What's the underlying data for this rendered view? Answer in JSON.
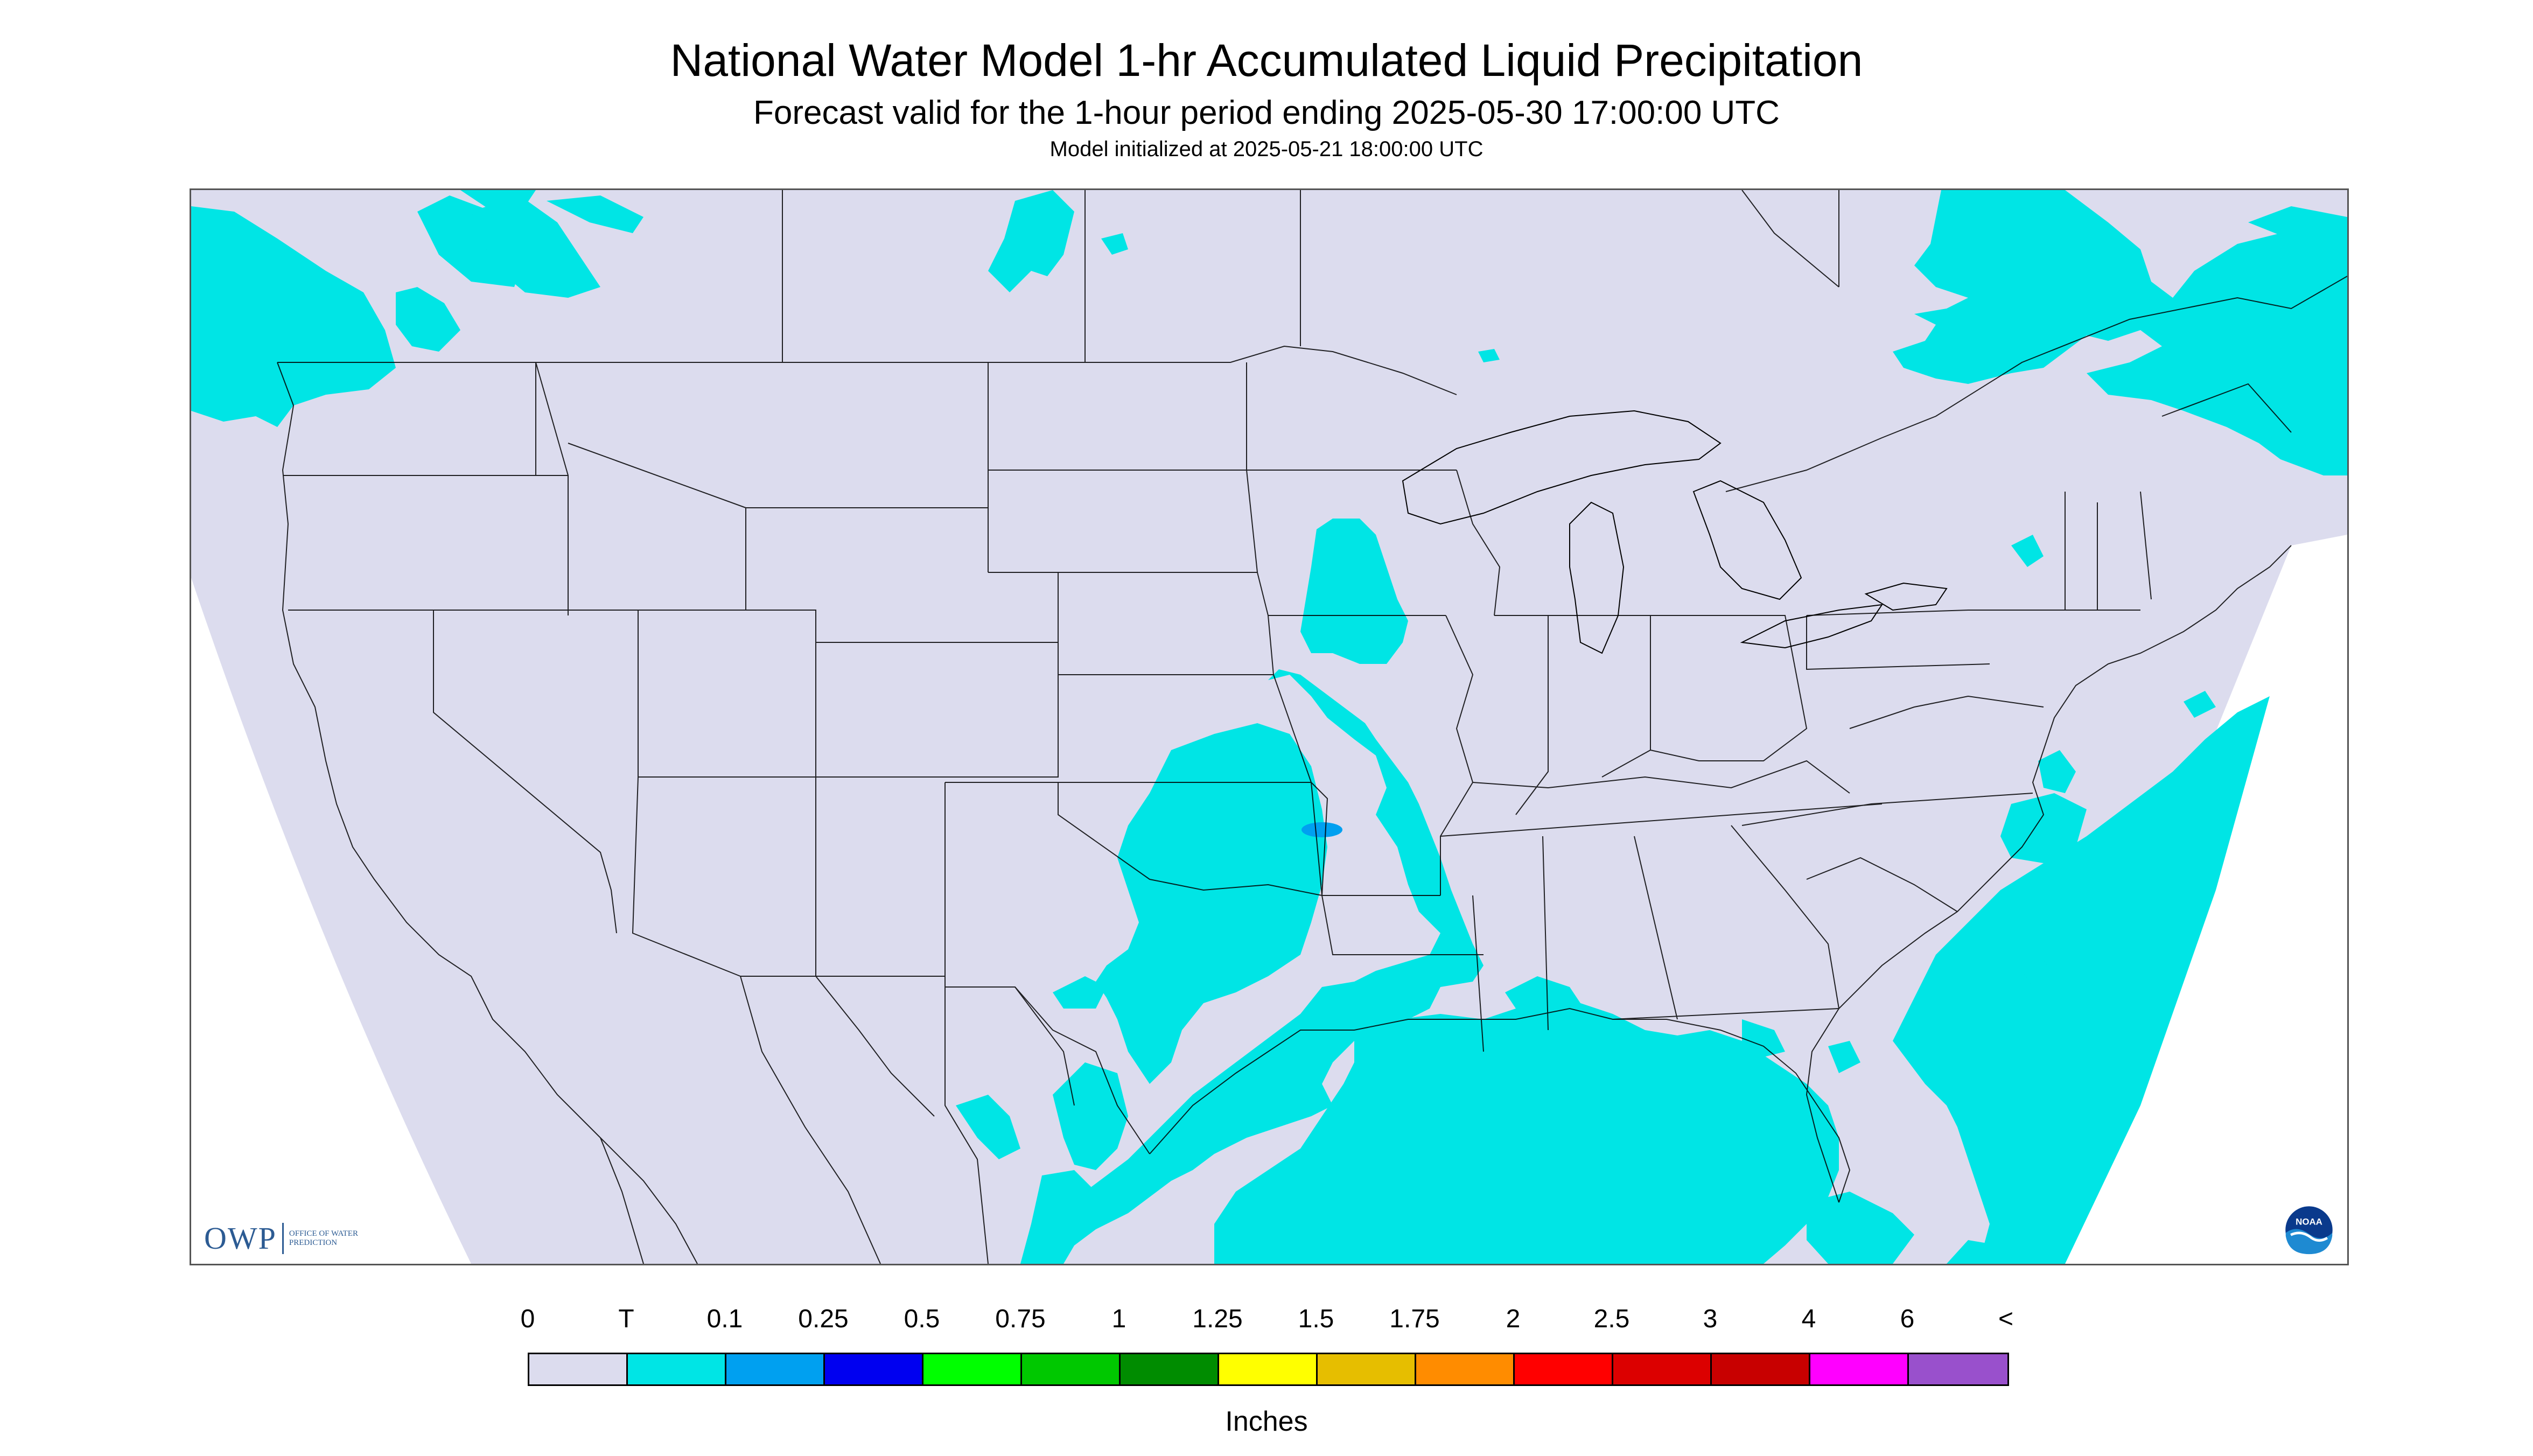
{
  "header": {
    "title": "National Water Model 1-hr Accumulated Liquid Precipitation",
    "subtitle": "Forecast valid for the 1-hour period ending 2025-05-30 17:00:00 UTC",
    "init_text": "Model initialized at 2025-05-21 18:00:00 UTC"
  },
  "map": {
    "region": "Continental United States",
    "background_color": "#dcdcee",
    "boundary_color": "#000000",
    "precip_color_trace": "#00e5e5"
  },
  "logos": {
    "owp_text": "OWP",
    "owp_subtext": "OFFICE OF WATER PREDICTION",
    "noaa_text": "NOAA"
  },
  "legend": {
    "units": "Inches",
    "labels": [
      "0",
      "T",
      "0.1",
      "0.25",
      "0.5",
      "0.75",
      "1",
      "1.25",
      "1.5",
      "1.75",
      "2",
      "2.5",
      "3",
      "4",
      "6",
      "<"
    ],
    "colors": [
      "#dcdcee",
      "#00e5e5",
      "#00a0f0",
      "#0000f0",
      "#00ff00",
      "#00c800",
      "#008c00",
      "#ffff00",
      "#e6be00",
      "#ff8c00",
      "#ff0000",
      "#dc0000",
      "#c80000",
      "#ff00ff",
      "#9950cc"
    ]
  }
}
